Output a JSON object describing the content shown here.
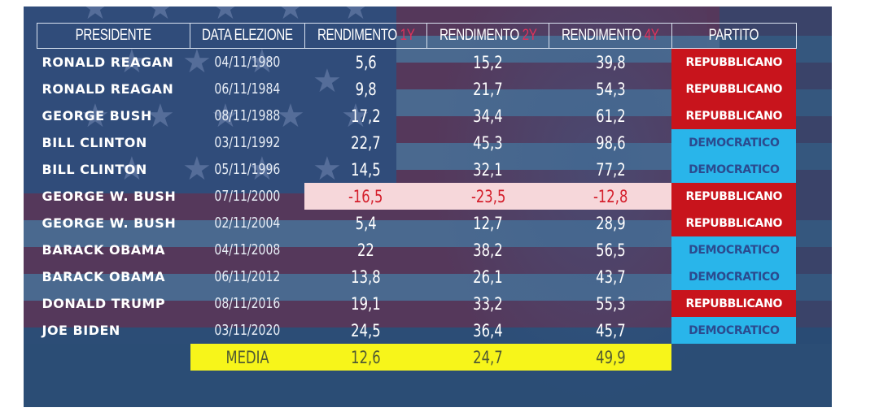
{
  "table": {
    "headers": {
      "presidente": "PRESIDENTE",
      "data_elezione": "DATA ELEZIONE",
      "r1_prefix": "RENDIMENTO ",
      "r1_accent": "1Y",
      "r2_prefix": "RENDIMENTO ",
      "r2_accent": "2Y",
      "r4_prefix": "RENDIMENTO ",
      "r4_accent": "4Y",
      "partito": "PARTITO"
    },
    "rows": [
      {
        "name": "RONALD REAGAN",
        "date": "04/11/1980",
        "r1": "5,6",
        "r2": "15,2",
        "r4": "39,8",
        "party": "REPUBBLICANO"
      },
      {
        "name": "RONALD REAGAN",
        "date": "06/11/1984",
        "r1": "9,8",
        "r2": "21,7",
        "r4": "54,3",
        "party": "REPUBBLICANO"
      },
      {
        "name": "GEORGE BUSH",
        "date": "08/11/1988",
        "r1": "17,2",
        "r2": "34,4",
        "r4": "61,2",
        "party": "REPUBBLICANO"
      },
      {
        "name": "BILL CLINTON",
        "date": "03/11/1992",
        "r1": "22,7",
        "r2": "45,3",
        "r4": "98,6",
        "party": "DEMOCRATICO"
      },
      {
        "name": "BILL CLINTON",
        "date": "05/11/1996",
        "r1": "14,5",
        "r2": "32,1",
        "r4": "77,2",
        "party": "DEMOCRATICO"
      },
      {
        "name": "GEORGE W. BUSH",
        "date": "07/11/2000",
        "r1": "-16,5",
        "r2": "-23,5",
        "r4": "-12,8",
        "party": "REPUBBLICANO"
      },
      {
        "name": "GEORGE W. BUSH",
        "date": "02/11/2004",
        "r1": "5,4",
        "r2": "12,7",
        "r4": "28,9",
        "party": "REPUBBLICANO"
      },
      {
        "name": "BARACK OBAMA",
        "date": "04/11/2008",
        "r1": "22",
        "r2": "38,2",
        "r4": "56,5",
        "party": "DEMOCRATICO"
      },
      {
        "name": "BARACK OBAMA",
        "date": "06/11/2012",
        "r1": "13,8",
        "r2": "26,1",
        "r4": "43,7",
        "party": "DEMOCRATICO"
      },
      {
        "name": "DONALD TRUMP",
        "date": "08/11/2016",
        "r1": "19,1",
        "r2": "33,2",
        "r4": "55,3",
        "party": "REPUBBLICANO"
      },
      {
        "name": "JOE BIDEN",
        "date": "03/11/2020",
        "r1": "24,5",
        "r2": "36,4",
        "r4": "45,7",
        "party": "DEMOCRATICO"
      }
    ],
    "media": {
      "label": "MEDIA",
      "r1": "12,6",
      "r2": "24,7",
      "r4": "49,9"
    }
  },
  "colors": {
    "republican": "#c8141c",
    "democratic": "#29b5ea",
    "media_highlight": "#f7f51a",
    "negative_row": "#f6d7da",
    "accent": "#e0325b"
  },
  "background": {
    "icon": "us-flag-map-background"
  }
}
